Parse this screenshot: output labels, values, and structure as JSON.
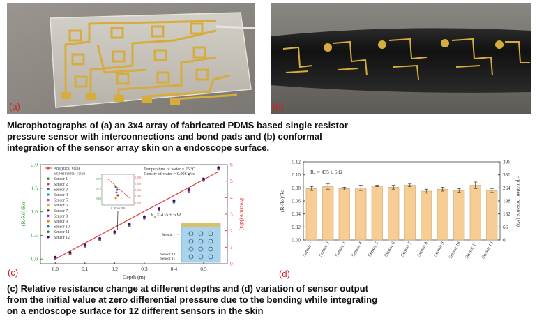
{
  "figure": {
    "label_a": "(a)",
    "label_b": "(b)",
    "label_c": "(c)",
    "label_d": "(d)",
    "caption_top": [
      "Microphotographs of (a) an 3x4 array of  fabricated PDMS based single resistor",
      "pressure  sensor  with  interconnections  and  bond  pads  and  (b)  conformal",
      "integration of the sensor array skin on a endoscope surface."
    ],
    "caption_bottom": [
      "(c) Relative resistance change at different depths and (d) variation of sensor output",
      "from the initial value at zero differential pressure due to the bending while integrating",
      "on a endoscope surface for 12 different sensors in the skin"
    ]
  },
  "colors": {
    "green_axis": "#2f9b2f",
    "red_axis": "#e03c3c",
    "bar_fill": "#f6cd95",
    "bar_stroke": "#c9a06a",
    "gold": "#d6ad3c"
  },
  "chart_data": [
    {
      "type": "scatter",
      "panel": "c",
      "xlabel": "Depth (m)",
      "ylabel_left": "(R-Ro)/Ro",
      "ylabel_right": "Pressure (kPa)",
      "xlim": [
        -0.05,
        0.58
      ],
      "ylim": [
        -0.1,
        2.0
      ],
      "y2lim": [
        0,
        6
      ],
      "xticks": [
        "0.0",
        "0.1",
        "0.2",
        "0.3",
        "0.4",
        "0.5"
      ],
      "xtick_values": [
        0.0,
        0.1,
        0.2,
        0.3,
        0.4,
        0.5
      ],
      "yticks_left": [
        "0.0",
        "0.5",
        "1.0",
        "1.5",
        "2.0"
      ],
      "ytick_values_left": [
        0.0,
        0.5,
        1.0,
        1.5,
        2.0
      ],
      "yticks_right": [
        "0",
        "1",
        "2",
        "3",
        "4",
        "5",
        "6"
      ],
      "ytick_values_right": [
        0,
        1,
        2,
        3,
        4,
        5,
        6
      ],
      "legend": [
        "Analytical value",
        "Experimental value",
        "Sensor 1",
        "Sensor 2",
        "Sensor 3",
        "Sensor 4",
        "Sensor 5",
        "Sensor 6",
        "Sensor 7",
        "Sensor 8",
        "Sensor 9",
        "Sensor 10",
        "Sensor 11",
        "Sensor 12"
      ],
      "legend_colors": [
        "#e03c3c",
        "#555555",
        "#2e8b2e",
        "#e03c3c",
        "#3b5fc7",
        "#2aa6a6",
        "#c03cc0",
        "#c8b020",
        "#7a3c1c",
        "#8a2be2",
        "#ff7f0e",
        "#1f77b4",
        "#228b22",
        "#4b0082"
      ],
      "annotations": [
        "Temperature of water = 25 °C",
        "Density of water = 0.996 g/cc",
        "R",
        "0",
        " = 435 ± 6 Ω",
        "Sensor 1",
        "Sensor 12",
        "Sensor 11"
      ],
      "analytical_line": {
        "x": [
          0.0,
          0.55
        ],
        "y": [
          0.0,
          1.85
        ]
      },
      "experimental_x": [
        0.0,
        0.05,
        0.1,
        0.15,
        0.2,
        0.25,
        0.3,
        0.35,
        0.4,
        0.45,
        0.5,
        0.55
      ],
      "experimental_y": [
        0.02,
        0.12,
        0.28,
        0.42,
        0.56,
        0.72,
        0.88,
        1.05,
        1.22,
        1.45,
        1.68,
        1.92
      ],
      "inset_ticks_left": [
        "0.72",
        "0.70",
        "0.68"
      ],
      "inset_ticks_right": [
        "2.250",
        "2.200",
        "2.150",
        "2.100",
        "2.050"
      ],
      "inset_xtick": "0.200 0.210"
    },
    {
      "type": "bar",
      "panel": "d",
      "ylabel_left": "(R-Ro)/Ro",
      "ylabel_right": "Equivalent pressure (Pa)",
      "annotation": "R₀ = 435 ± 6 Ω",
      "categories": [
        "Sensor 1",
        "Sensor 2",
        "Sensor 3",
        "Sensor 4",
        "Sensor 5",
        "Sensor 6",
        "Sensor 7",
        "Sensor 8",
        "Sensor 9",
        "Sensor 10",
        "Sensor 11",
        "Sensor 12"
      ],
      "values": [
        0.079,
        0.082,
        0.079,
        0.08,
        0.083,
        0.081,
        0.084,
        0.075,
        0.078,
        0.076,
        0.084,
        0.076
      ],
      "errors": [
        0.003,
        0.004,
        0.002,
        0.004,
        0.001,
        0.003,
        0.002,
        0.003,
        0.003,
        0.003,
        0.005,
        0.003
      ],
      "ylim": [
        0.0,
        0.12
      ],
      "yticks_left": [
        "0.00",
        "0.02",
        "0.04",
        "0.06",
        "0.08",
        "0.10",
        "0.12"
      ],
      "ytick_values_left": [
        0.0,
        0.02,
        0.04,
        0.06,
        0.08,
        0.1,
        0.12
      ],
      "yticks_right": [
        "0",
        "66",
        "132",
        "198",
        "264",
        "330",
        "396"
      ],
      "ytick_values_right": [
        0,
        66,
        132,
        198,
        264,
        330,
        396
      ]
    }
  ]
}
